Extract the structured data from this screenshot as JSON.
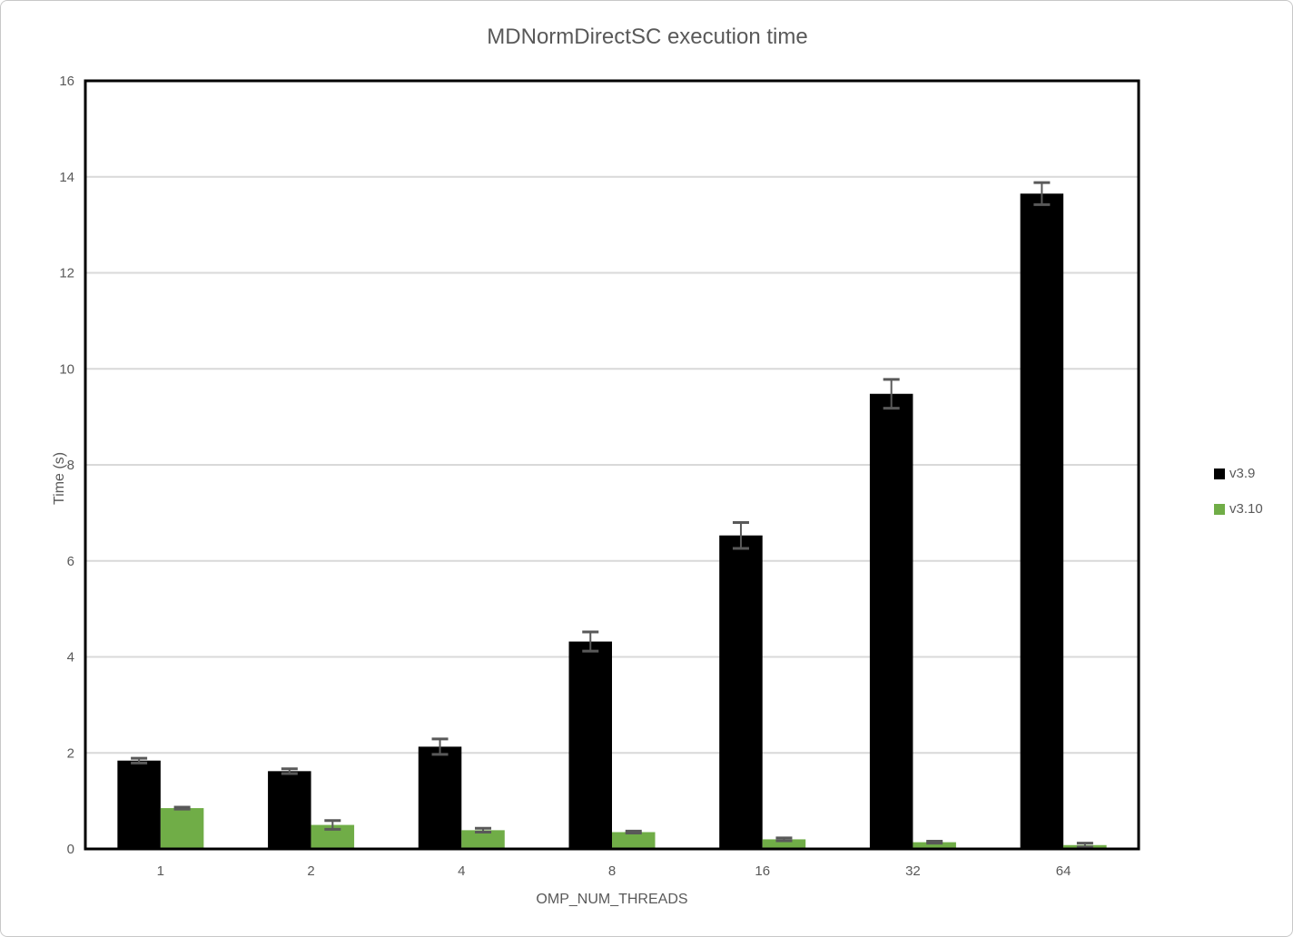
{
  "window": {
    "background": "#ffffff",
    "border_color": "#c8c8c8"
  },
  "chart_data": {
    "type": "bar",
    "title": "MDNormDirectSC execution time",
    "xlabel": "OMP_NUM_THREADS",
    "ylabel": "Time (s)",
    "categories": [
      "1",
      "2",
      "4",
      "8",
      "16",
      "32",
      "64"
    ],
    "series": [
      {
        "name": "v3.9",
        "color": "#000000",
        "values": [
          1.84,
          1.62,
          2.13,
          4.32,
          6.53,
          9.48,
          13.65
        ],
        "error_bars": [
          0.05,
          0.05,
          0.16,
          0.2,
          0.27,
          0.3,
          0.23
        ]
      },
      {
        "name": "v3.10",
        "color": "#70AD47",
        "values": [
          0.85,
          0.5,
          0.39,
          0.35,
          0.2,
          0.14,
          0.08
        ],
        "error_bars": [
          0.02,
          0.09,
          0.04,
          0.02,
          0.03,
          0.02,
          0.04
        ]
      }
    ],
    "ylim": [
      0,
      16
    ],
    "ytick_step": 2,
    "yticks": [
      "0",
      "2",
      "4",
      "6",
      "8",
      "10",
      "12",
      "14",
      "16"
    ],
    "grid": true,
    "legend_position": "right",
    "colors": {
      "gridline": "#D9D9D9",
      "axis_text": "#595959",
      "plot_border": "#000000",
      "error_bar": "#595959"
    }
  }
}
